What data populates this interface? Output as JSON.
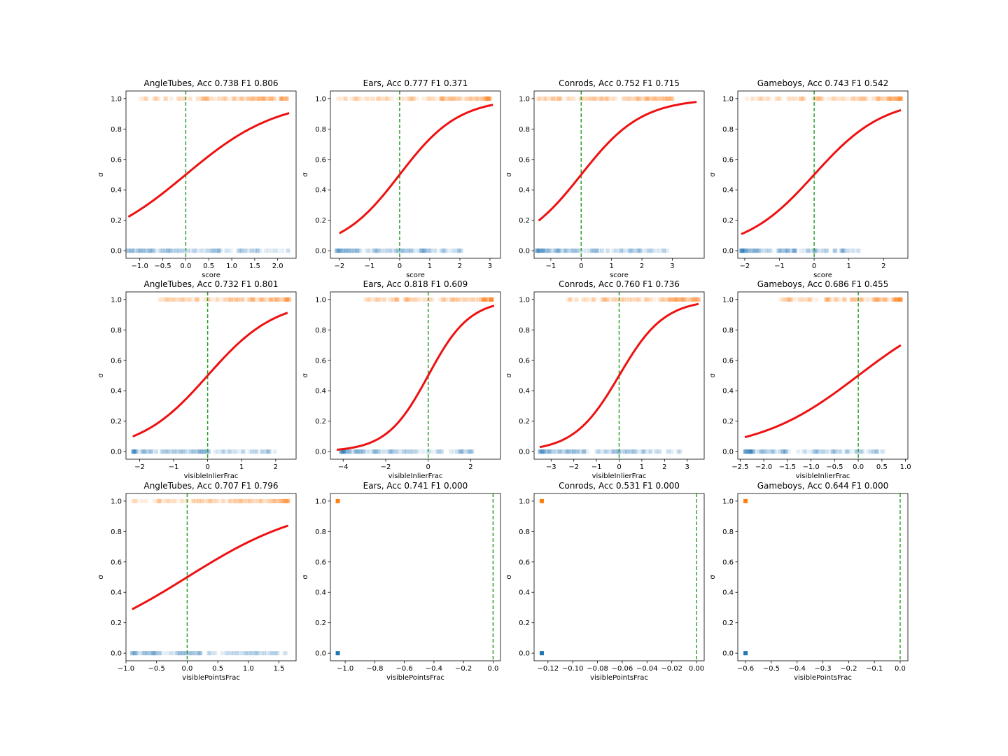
{
  "chart_data": [
    {
      "type": "scatter",
      "title": "AngleTubes, Acc 0.738 F1 0.806",
      "xlabel": "score",
      "ylabel": "σ",
      "xlim": [
        -1.3,
        2.4
      ],
      "ylim": [
        -0.05,
        1.05
      ],
      "xticks": [
        -1.0,
        -0.5,
        0.0,
        0.5,
        1.0,
        1.5,
        2.0
      ],
      "xtick_labels": [
        "−1.0",
        "−0.5",
        "0.0",
        "0.5",
        "1.0",
        "1.5",
        "2.0"
      ],
      "yticks": [
        0,
        0.2,
        0.4,
        0.6,
        0.8,
        1.0
      ],
      "ytick_labels": [
        "0.0",
        "0.2",
        "0.4",
        "0.6",
        "0.8",
        "1.0"
      ],
      "neg_range": [
        -1.25,
        2.25
      ],
      "pos_range": [
        -1.0,
        2.2
      ],
      "decision_boundary": 0.0,
      "sigmoid": {
        "slope": 1.0,
        "x_range": [
          -1.25,
          2.25
        ]
      }
    },
    {
      "type": "scatter",
      "title": "Ears, Acc 0.777 F1 0.371",
      "xlabel": "score",
      "ylabel": "σ",
      "xlim": [
        -2.3,
        3.35
      ],
      "ylim": [
        -0.05,
        1.05
      ],
      "xticks": [
        -2,
        -1,
        0,
        1,
        2,
        3
      ],
      "xtick_labels": [
        "−2",
        "−1",
        "0",
        "1",
        "2",
        "3"
      ],
      "yticks": [
        0,
        0.2,
        0.4,
        0.6,
        0.8,
        1.0
      ],
      "ytick_labels": [
        "0.0",
        "0.2",
        "0.4",
        "0.6",
        "0.8",
        "1.0"
      ],
      "neg_range": [
        -2.1,
        2.1
      ],
      "pos_range": [
        -2.1,
        3.0
      ],
      "decision_boundary": 0.0,
      "sigmoid": {
        "slope": 1.02,
        "x_range": [
          -2.0,
          3.1
        ]
      }
    },
    {
      "type": "scatter",
      "title": "Conrods, Acc 0.752 F1 0.715",
      "xlabel": "score",
      "ylabel": "σ",
      "xlim": [
        -1.55,
        4.05
      ],
      "ylim": [
        -0.05,
        1.05
      ],
      "xticks": [
        -1,
        0,
        1,
        2,
        3
      ],
      "xtick_labels": [
        "−1",
        "0",
        "1",
        "2",
        "3"
      ],
      "yticks": [
        0,
        0.2,
        0.4,
        0.6,
        0.8,
        1.0
      ],
      "ytick_labels": [
        "0.0",
        "0.2",
        "0.4",
        "0.6",
        "0.8",
        "1.0"
      ],
      "neg_range": [
        -1.45,
        3.0
      ],
      "pos_range": [
        -1.45,
        3.0
      ],
      "decision_boundary": 0.0,
      "sigmoid": {
        "slope": 1.0,
        "x_range": [
          -1.4,
          3.8
        ]
      }
    },
    {
      "type": "scatter",
      "title": "Gameboys, Acc 0.743 F1 0.542",
      "xlabel": "score",
      "ylabel": "σ",
      "xlim": [
        -2.2,
        2.7
      ],
      "ylim": [
        -0.05,
        1.05
      ],
      "xticks": [
        -2,
        -1,
        0,
        1,
        2
      ],
      "xtick_labels": [
        "−2",
        "−1",
        "0",
        "1",
        "2"
      ],
      "yticks": [
        0,
        0.2,
        0.4,
        0.6,
        0.8,
        1.0
      ],
      "ytick_labels": [
        "0.0",
        "0.2",
        "0.4",
        "0.6",
        "0.8",
        "1.0"
      ],
      "neg_range": [
        -2.1,
        1.45
      ],
      "pos_range": [
        -2.1,
        2.5
      ],
      "decision_boundary": 0.0,
      "sigmoid": {
        "slope": 1.0,
        "x_range": [
          -2.1,
          2.5
        ]
      }
    },
    {
      "type": "scatter",
      "title": "AngleTubes, Acc 0.732 F1 0.801",
      "xlabel": "visibleInlierFrac",
      "ylabel": "σ",
      "xlim": [
        -2.4,
        2.6
      ],
      "ylim": [
        -0.05,
        1.05
      ],
      "xticks": [
        -2,
        -1,
        0,
        1,
        2
      ],
      "xtick_labels": [
        "−2",
        "−1",
        "0",
        "1",
        "2"
      ],
      "yticks": [
        0,
        0.2,
        0.4,
        0.6,
        0.8,
        1.0
      ],
      "ytick_labels": [
        "0.0",
        "0.2",
        "0.4",
        "0.6",
        "0.8",
        "1.0"
      ],
      "neg_range": [
        -2.2,
        2.0
      ],
      "pos_range": [
        -1.6,
        2.4
      ],
      "decision_boundary": 0.0,
      "sigmoid": {
        "slope": 1.0,
        "x_range": [
          -2.2,
          2.35
        ]
      }
    },
    {
      "type": "scatter",
      "title": "Ears, Acc 0.818 F1 0.609",
      "xlabel": "visibleInlierFrac",
      "ylabel": "σ",
      "xlim": [
        -4.6,
        3.4
      ],
      "ylim": [
        -0.05,
        1.05
      ],
      "xticks": [
        -4,
        -2,
        0,
        2
      ],
      "xtick_labels": [
        "−4",
        "−2",
        "0",
        "2"
      ],
      "yticks": [
        0,
        0.2,
        0.4,
        0.6,
        0.8,
        1.0
      ],
      "ytick_labels": [
        "0.0",
        "0.2",
        "0.4",
        "0.6",
        "0.8",
        "1.0"
      ],
      "neg_range": [
        -4.1,
        2.4
      ],
      "pos_range": [
        -3.0,
        3.0
      ],
      "decision_boundary": 0.0,
      "sigmoid": {
        "slope": 1.02,
        "x_range": [
          -4.3,
          3.1
        ]
      }
    },
    {
      "type": "scatter",
      "title": "Conrods, Acc 0.760 F1 0.736",
      "xlabel": "visibleInlierFrac",
      "ylabel": "σ",
      "xlim": [
        -3.75,
        3.75
      ],
      "ylim": [
        -0.05,
        1.05
      ],
      "xticks": [
        -3,
        -2,
        -1,
        0,
        1,
        2,
        3
      ],
      "xtick_labels": [
        "−3",
        "−2",
        "−1",
        "0",
        "1",
        "2",
        "3"
      ],
      "yticks": [
        0,
        0.2,
        0.4,
        0.6,
        0.8,
        1.0
      ],
      "ytick_labels": [
        "0.0",
        "0.2",
        "0.4",
        "0.6",
        "0.8",
        "1.0"
      ],
      "neg_range": [
        -3.5,
        2.7
      ],
      "pos_range": [
        -2.3,
        3.5
      ],
      "decision_boundary": 0.0,
      "sigmoid": {
        "slope": 1.0,
        "x_range": [
          -3.5,
          3.5
        ]
      }
    },
    {
      "type": "scatter",
      "title": "Gameboys, Acc 0.686 F1 0.455",
      "xlabel": "visibleInlierFrac",
      "ylabel": "σ",
      "xlim": [
        -2.55,
        1.05
      ],
      "ylim": [
        -0.05,
        1.05
      ],
      "xticks": [
        -2.5,
        -2.0,
        -1.5,
        -1.0,
        -0.5,
        0.0,
        0.5,
        1.0
      ],
      "xtick_labels": [
        "−2.5",
        "−2.0",
        "−1.5",
        "−1.0",
        "−0.5",
        "0.0",
        "0.5",
        "1.0"
      ],
      "yticks": [
        0,
        0.2,
        0.4,
        0.6,
        0.8,
        1.0
      ],
      "ytick_labels": [
        "0.0",
        "0.2",
        "0.4",
        "0.6",
        "0.8",
        "1.0"
      ],
      "neg_range": [
        -2.4,
        0.55
      ],
      "pos_range": [
        -1.7,
        0.9
      ],
      "decision_boundary": 0.0,
      "sigmoid": {
        "slope": 0.94,
        "x_range": [
          -2.4,
          0.9
        ]
      }
    },
    {
      "type": "scatter",
      "title": "AngleTubes, Acc 0.707 F1 0.796",
      "xlabel": "visiblePointsFrac",
      "ylabel": "σ",
      "xlim": [
        -1.0,
        1.78
      ],
      "ylim": [
        -0.05,
        1.05
      ],
      "xticks": [
        -1.0,
        -0.5,
        0.0,
        0.5,
        1.0,
        1.5
      ],
      "xtick_labels": [
        "−1.0",
        "−0.5",
        "0.0",
        "0.5",
        "1.0",
        "1.5"
      ],
      "yticks": [
        0,
        0.2,
        0.4,
        0.6,
        0.8,
        1.0
      ],
      "ytick_labels": [
        "0.0",
        "0.2",
        "0.4",
        "0.6",
        "0.8",
        "1.0"
      ],
      "neg_range": [
        -0.9,
        1.7
      ],
      "pos_range": [
        -0.9,
        1.65
      ],
      "decision_boundary": 0.0,
      "sigmoid": {
        "slope": 1.0,
        "x_range": [
          -0.9,
          1.65
        ]
      }
    },
    {
      "type": "scatter",
      "title": "Ears, Acc 0.741 F1 0.000",
      "xlabel": "visiblePointsFrac",
      "ylabel": "σ",
      "xlim": [
        -1.1,
        0.05
      ],
      "ylim": [
        -0.05,
        1.05
      ],
      "xticks": [
        -1.0,
        -0.8,
        -0.6,
        -0.4,
        -0.2,
        0.0
      ],
      "xtick_labels": [
        "−1.0",
        "−0.8",
        "−0.6",
        "−0.4",
        "−0.2",
        "0.0"
      ],
      "yticks": [
        0,
        0.2,
        0.4,
        0.6,
        0.8,
        1.0
      ],
      "ytick_labels": [
        "0.0",
        "0.2",
        "0.4",
        "0.6",
        "0.8",
        "1.0"
      ],
      "neg_point": -1.05,
      "pos_point": -1.05,
      "decision_boundary": 0.0
    },
    {
      "type": "scatter",
      "title": "Conrods, Acc 0.531 F1 0.000",
      "xlabel": "visiblePointsFrac",
      "ylabel": "σ",
      "xlim": [
        -0.1312,
        0.0062
      ],
      "ylim": [
        -0.05,
        1.05
      ],
      "xticks": [
        -0.12,
        -0.1,
        -0.08,
        -0.06,
        -0.04,
        -0.02,
        0.0
      ],
      "xtick_labels": [
        "−0.12",
        "−0.10",
        "−0.08",
        "−0.06",
        "−0.04",
        "−0.02",
        "0.00"
      ],
      "yticks": [
        0,
        0.2,
        0.4,
        0.6,
        0.8,
        1.0
      ],
      "ytick_labels": [
        "0.0",
        "0.2",
        "0.4",
        "0.6",
        "0.8",
        "1.0"
      ],
      "neg_point": -0.125,
      "pos_point": -0.125,
      "decision_boundary": 0.0
    },
    {
      "type": "scatter",
      "title": "Gameboys, Acc 0.644 F1 0.000",
      "xlabel": "visiblePointsFrac",
      "ylabel": "σ",
      "xlim": [
        -0.63,
        0.03
      ],
      "ylim": [
        -0.05,
        1.05
      ],
      "xticks": [
        -0.6,
        -0.5,
        -0.4,
        -0.3,
        -0.2,
        -0.1,
        0.0
      ],
      "xtick_labels": [
        "−0.6",
        "−0.5",
        "−0.4",
        "−0.3",
        "−0.2",
        "−0.1",
        "0.0"
      ],
      "yticks": [
        0,
        0.2,
        0.4,
        0.6,
        0.8,
        1.0
      ],
      "ytick_labels": [
        "0.0",
        "0.2",
        "0.4",
        "0.6",
        "0.8",
        "1.0"
      ],
      "neg_point": -0.6,
      "pos_point": -0.6,
      "decision_boundary": 0.0
    }
  ],
  "colors": {
    "negative": "#1f77b4",
    "positive": "#ff7f0e",
    "sigmoid": "#ee1111",
    "boundary": "#2ca02c",
    "axes": "#000000"
  }
}
